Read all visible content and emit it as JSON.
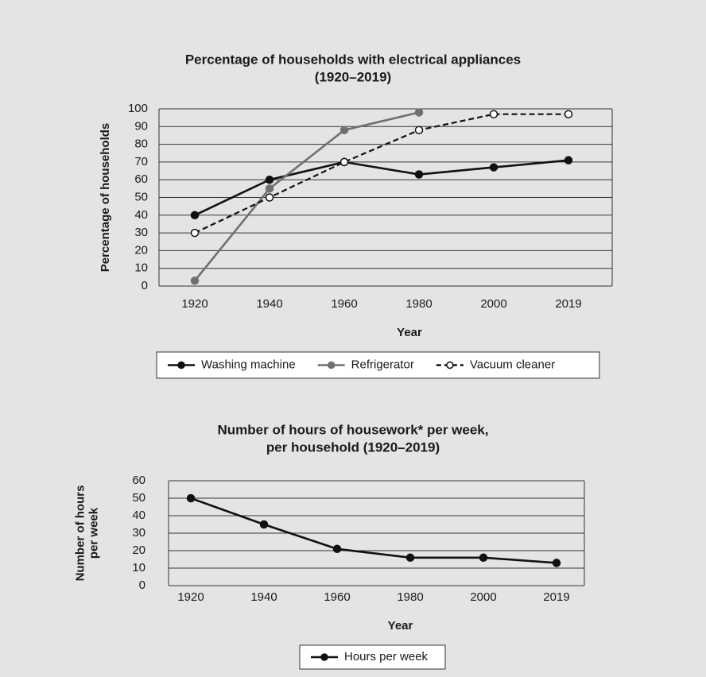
{
  "chart_data": [
    {
      "type": "line",
      "title": [
        "Percentage of households with electrical appliances",
        "(1920–2019)"
      ],
      "xlabel": "Year",
      "ylabel": [
        "Percentage of households"
      ],
      "categories": [
        "1920",
        "1940",
        "1960",
        "1980",
        "2000",
        "2019"
      ],
      "series": [
        {
          "name": "Washing machine",
          "color": "#111111",
          "dash": false,
          "marker": "filled",
          "values": [
            40,
            60,
            70,
            63,
            67,
            71
          ]
        },
        {
          "name": "Refrigerator",
          "color": "#707070",
          "dash": false,
          "marker": "filled",
          "values": [
            3,
            55,
            88,
            98,
            null,
            null
          ]
        },
        {
          "name": "Vacuum cleaner",
          "color": "#111111",
          "dash": true,
          "marker": "open",
          "values": [
            30,
            50,
            70,
            88,
            97,
            97
          ]
        }
      ],
      "ylim": [
        0,
        100
      ],
      "yticks": [
        0,
        10,
        20,
        30,
        40,
        50,
        60,
        70,
        80,
        90,
        100
      ],
      "grid": true
    },
    {
      "type": "line",
      "title": [
        "Number of hours of housework* per week,",
        "per household (1920–2019)"
      ],
      "xlabel": "Year",
      "ylabel": [
        "Number of hours",
        "per week"
      ],
      "categories": [
        "1920",
        "1940",
        "1960",
        "1980",
        "2000",
        "2019"
      ],
      "series": [
        {
          "name": "Hours per week",
          "color": "#111111",
          "dash": false,
          "marker": "filled",
          "values": [
            50,
            35,
            21,
            16,
            16,
            13
          ]
        }
      ],
      "ylim": [
        0,
        60
      ],
      "yticks": [
        0,
        10,
        20,
        30,
        40,
        50,
        60
      ],
      "grid": true
    }
  ]
}
